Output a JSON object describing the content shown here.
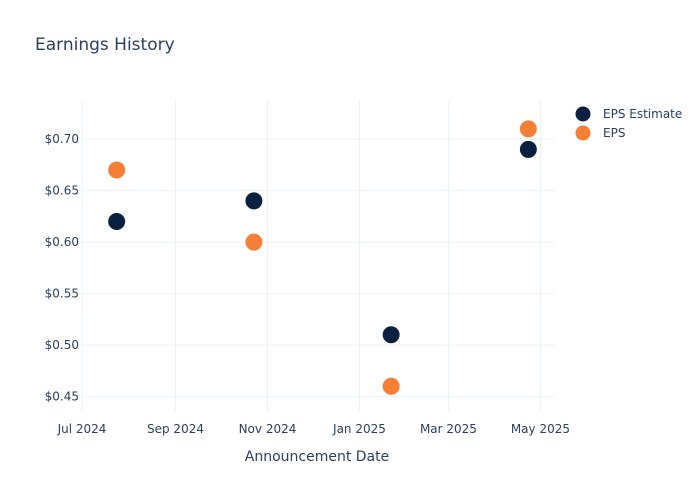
{
  "chart_data": {
    "type": "scatter",
    "title": "Earnings History",
    "xlabel": "Announcement Date",
    "ylabel": "",
    "x_ticks": [
      "Jul 2024",
      "Sep 2024",
      "Nov 2024",
      "Jan 2025",
      "Mar 2025",
      "May 2025"
    ],
    "x_tick_dates": [
      "2024-07-01",
      "2024-09-01",
      "2024-11-01",
      "2025-01-01",
      "2025-03-01",
      "2025-05-01"
    ],
    "y_ticks": [
      "$0.45",
      "$0.50",
      "$0.55",
      "$0.60",
      "$0.65",
      "$0.70"
    ],
    "y_tick_values": [
      0.45,
      0.5,
      0.55,
      0.6,
      0.65,
      0.7
    ],
    "xlim": [
      "2024-07-01",
      "2025-05-10"
    ],
    "ylim": [
      0.436,
      0.738
    ],
    "grid": true,
    "legend_position": "top-right",
    "series": [
      {
        "name": "EPS Estimate",
        "color": "#0b1f3f",
        "points": [
          {
            "x": "2024-07-24",
            "y": 0.62
          },
          {
            "x": "2024-10-23",
            "y": 0.64
          },
          {
            "x": "2025-01-22",
            "y": 0.51
          },
          {
            "x": "2025-04-23",
            "y": 0.69
          }
        ]
      },
      {
        "name": "EPS",
        "color": "#f47f35",
        "points": [
          {
            "x": "2024-07-24",
            "y": 0.67
          },
          {
            "x": "2024-10-23",
            "y": 0.6
          },
          {
            "x": "2025-01-22",
            "y": 0.46
          },
          {
            "x": "2025-04-23",
            "y": 0.71
          }
        ]
      }
    ]
  }
}
